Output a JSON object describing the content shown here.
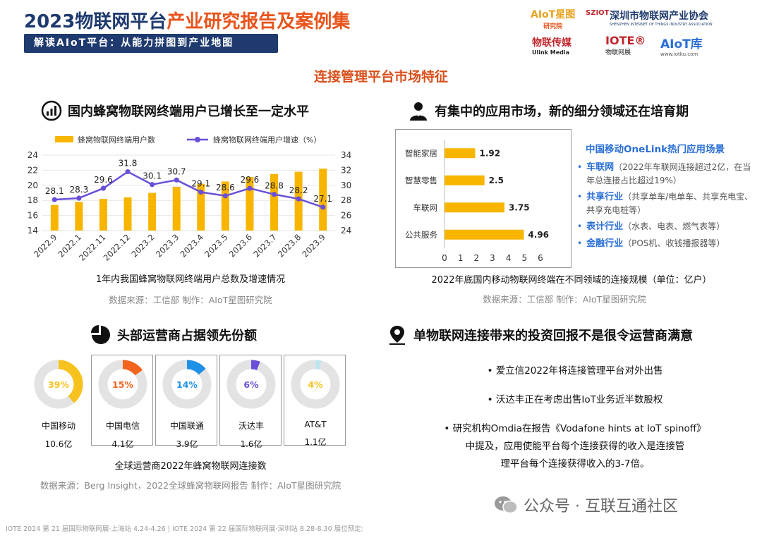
{
  "header": {
    "title_plain": "2023物联网平台",
    "title_accent": "产业研究报告及案例集",
    "subtitle": "解读AIoT平台：从能力拼图到产业地图",
    "logos": {
      "aiot_name": "AIoT星图",
      "aiot_sub": "研究院",
      "sziot_mark": "SZIOT",
      "sziot_name": "深圳市物联网产业协会",
      "sziot_en": "SHENZHEN INTERNET OF THINGS INDUSTRY ASSOCIATION",
      "ulink_name": "物联传媒",
      "ulink_en": "Ulink Media",
      "iote_name": "IOTE®",
      "iote_sub": "物联网展",
      "aiotku_name": "AIoT库",
      "aiotku_sub": "www.iotku.com"
    }
  },
  "main_title": "连接管理平台市场特征",
  "sections": {
    "s1": {
      "title": "国内蜂窝物联网终端用户已增长至一定水平",
      "icon": "bar-chart-icon"
    },
    "s2": {
      "title": "有集中的应用市场，新的细分领域还在培育期",
      "icon": "person-icon"
    },
    "s3": {
      "title": "头部运营商占据领先份额",
      "icon": "pie-icon"
    },
    "s4": {
      "title": "单物联网连接带来的投资回报不是很令运营商满意",
      "icon": "location-pin-icon"
    }
  },
  "chart_data": [
    {
      "type": "bar+line",
      "categories": [
        "2022.9",
        "2022.1",
        "2022.11",
        "2022.12",
        "2023.2",
        "2023.3",
        "2023.4",
        "2023.5",
        "2023.6",
        "2023.7",
        "2023.8",
        "2023.9"
      ],
      "series": [
        {
          "name": "蜂窝物联网终端用户数",
          "type": "bar",
          "axis": "left",
          "values": [
            17.4,
            17.8,
            18.2,
            18.4,
            19.0,
            19.8,
            20.2,
            20.5,
            21.1,
            21.5,
            21.8,
            22.2
          ]
        },
        {
          "name": "蜂窝物联网终端用户增速（%）",
          "type": "line",
          "axis": "right",
          "values": [
            28.1,
            28.3,
            29.6,
            31.8,
            30.1,
            30.7,
            29.1,
            28.6,
            29.6,
            28.8,
            28.2,
            27.1
          ]
        }
      ],
      "left_axis": {
        "min": 14,
        "max": 24,
        "ticks": [
          14,
          16,
          18,
          20,
          22,
          24
        ]
      },
      "right_axis": {
        "min": 24,
        "max": 34,
        "ticks": [
          24,
          26,
          28,
          30,
          32,
          34
        ]
      },
      "caption": "1年内我国蜂窝物联网终端用户总数及增速情况",
      "source": "数据来源：工信部   制作：AIoT星图研究院",
      "colors": {
        "bar": "#f7b500",
        "line": "#6a4fd8",
        "grid": "#e6e6e6"
      }
    },
    {
      "type": "bar-horizontal",
      "categories": [
        "智能家居",
        "智慧零售",
        "车联网",
        "公共服务"
      ],
      "values": [
        1.92,
        2.5,
        3.75,
        4.96
      ],
      "x_axis": {
        "min": 0,
        "max": 6,
        "ticks": [
          0,
          1,
          2,
          3,
          4,
          5,
          6
        ]
      },
      "caption": "2022年底国内移动物联网终端在不同领域的连接规模（单位：亿户）",
      "source": "数据来源：工信部   制作：AIoT星图研究院",
      "colors": {
        "bar": "#f7b500"
      }
    },
    {
      "type": "pie",
      "items": [
        {
          "name": "中国移动",
          "percent": 39,
          "label": "39%",
          "value": "10.6亿",
          "color": "#f7c21e"
        },
        {
          "name": "中国电信",
          "percent": 15,
          "label": "15%",
          "value": "4.1亿",
          "color": "#f2641d"
        },
        {
          "name": "中国联通",
          "percent": 14,
          "label": "14%",
          "value": "3.9亿",
          "color": "#1e90e6"
        },
        {
          "name": "沃达丰",
          "percent": 6,
          "label": "6%",
          "value": "1.6亿",
          "color": "#6a4fd8"
        },
        {
          "name": "AT&T",
          "percent": 4,
          "label": "4%",
          "value": "1.1亿",
          "color": "#bfe6ee"
        }
      ],
      "caption": "全球运营商2022年蜂窝物联网连接数",
      "source": "数据来源：Berg Insight，2022全球蜂窝物联网报告   制作：AIoT星图研究院",
      "colors": {
        "track": "#e3e3e3"
      }
    }
  ],
  "onelink": {
    "title": "中国移动OneLink热门应用场景",
    "items": [
      {
        "name": "车联网",
        "desc": "（2022年车联网连接超过2亿，在当年总连接占比超过19%）"
      },
      {
        "name": "共享行业",
        "desc": "（共享单车/电单车、共享充电宝、共享充电桩等）"
      },
      {
        "name": "表计行业",
        "desc": "（水表、电表、燃气表等）"
      },
      {
        "name": "金融行业",
        "desc": "（POS机、收钱播报器等）"
      }
    ]
  },
  "bullets": {
    "b1": "爱立信2022年将连接管理平台对外出售",
    "b2": "沃达丰正在考虑出售IoT业务近半数股权",
    "b3_l1": "研究机构Omdia在报告《Vodafone hints at IoT spinoff》",
    "b3_l2": "中提及，应用使能平台每个连接获得的收入是连接管",
    "b3_l3": "理平台每个连接获得收入的3-7倍。"
  },
  "footer": "IOTE 2024 第 21 届国际物联网展·上海站 4.24-4.26 | IOTE 2024 第 22 届国际物联网展·深圳站 8.28-8.30  展位预定:",
  "watermark": "公众号 · 互联互通社区"
}
